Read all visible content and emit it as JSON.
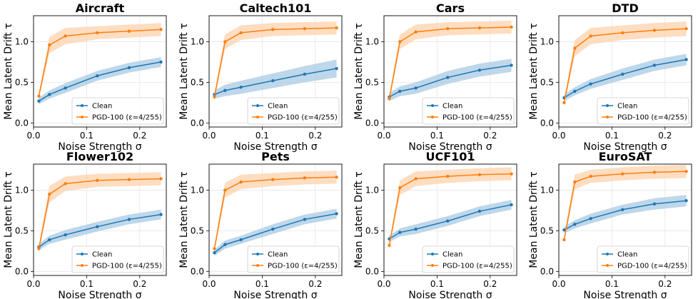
{
  "figure": {
    "xlabel": "Noise Strength σ",
    "ylabel": "Mean Latent Drift τ"
  },
  "colors": {
    "clean": "#1f77b4",
    "clean_band": "#a8c9e3",
    "pgd": "#ff7f0e",
    "pgd_band": "#fdd2ac",
    "grid": "#e6e6e6"
  },
  "chart_data": [
    {
      "type": "line",
      "title": "Aircraft",
      "xlabel": "Noise Strength σ",
      "ylabel": "Mean Latent Drift τ",
      "xlim": [
        0,
        0.25
      ],
      "ylim": [
        -0.05,
        1.32
      ],
      "xticks": [
        0.0,
        0.1,
        0.2
      ],
      "yticks": [
        0.0,
        0.5,
        1.0
      ],
      "grid": true,
      "legend": "lower right",
      "x": [
        0.01,
        0.03,
        0.06,
        0.12,
        0.18,
        0.24
      ],
      "series": [
        {
          "name": "Clean",
          "values": [
            0.27,
            0.35,
            0.43,
            0.58,
            0.68,
            0.75
          ],
          "band": [
            0.04,
            0.05,
            0.06,
            0.06,
            0.06,
            0.06
          ]
        },
        {
          "name": "PGD-100 (ε=4/255)",
          "values": [
            0.33,
            0.96,
            1.07,
            1.11,
            1.13,
            1.15
          ],
          "band": [
            0.04,
            0.1,
            0.1,
            0.08,
            0.08,
            0.08
          ]
        }
      ]
    },
    {
      "type": "line",
      "title": "Caltech101",
      "xlabel": "Noise Strength σ",
      "ylabel": "Mean Latent Drift τ",
      "xlim": [
        0,
        0.25
      ],
      "ylim": [
        -0.05,
        1.32
      ],
      "xticks": [
        0.0,
        0.1,
        0.2
      ],
      "yticks": [
        0.0,
        0.5,
        1.0
      ],
      "grid": true,
      "legend": "lower right",
      "x": [
        0.01,
        0.03,
        0.06,
        0.12,
        0.18,
        0.24
      ],
      "series": [
        {
          "name": "Clean",
          "values": [
            0.35,
            0.4,
            0.44,
            0.52,
            0.6,
            0.67
          ],
          "band": [
            0.05,
            0.07,
            0.08,
            0.09,
            0.1,
            0.11
          ]
        },
        {
          "name": "PGD-100 (ε=4/255)",
          "values": [
            0.32,
            1.0,
            1.11,
            1.15,
            1.16,
            1.17
          ],
          "band": [
            0.04,
            0.09,
            0.09,
            0.08,
            0.08,
            0.08
          ]
        }
      ]
    },
    {
      "type": "line",
      "title": "Cars",
      "xlabel": "Noise Strength σ",
      "ylabel": "Mean Latent Drift τ",
      "xlim": [
        0,
        0.25
      ],
      "ylim": [
        -0.05,
        1.32
      ],
      "xticks": [
        0.0,
        0.1,
        0.2
      ],
      "yticks": [
        0.0,
        0.5,
        1.0
      ],
      "grid": true,
      "legend": "lower right",
      "x": [
        0.01,
        0.03,
        0.06,
        0.12,
        0.18,
        0.24
      ],
      "series": [
        {
          "name": "Clean",
          "values": [
            0.32,
            0.39,
            0.43,
            0.56,
            0.65,
            0.71
          ],
          "band": [
            0.05,
            0.06,
            0.07,
            0.08,
            0.08,
            0.08
          ]
        },
        {
          "name": "PGD-100 (ε=4/255)",
          "values": [
            0.3,
            1.0,
            1.12,
            1.16,
            1.17,
            1.18
          ],
          "band": [
            0.04,
            0.09,
            0.09,
            0.08,
            0.08,
            0.08
          ]
        }
      ]
    },
    {
      "type": "line",
      "title": "DTD",
      "xlabel": "Noise Strength σ",
      "ylabel": "Mean Latent Drift τ",
      "xlim": [
        0,
        0.25
      ],
      "ylim": [
        -0.05,
        1.32
      ],
      "xticks": [
        0.0,
        0.1,
        0.2
      ],
      "yticks": [
        0.0,
        0.5,
        1.0
      ],
      "grid": true,
      "legend": "lower right",
      "x": [
        0.01,
        0.03,
        0.06,
        0.12,
        0.18,
        0.24
      ],
      "series": [
        {
          "name": "Clean",
          "values": [
            0.31,
            0.39,
            0.48,
            0.6,
            0.71,
            0.78
          ],
          "band": [
            0.04,
            0.05,
            0.06,
            0.07,
            0.07,
            0.07
          ]
        },
        {
          "name": "PGD-100 (ε=4/255)",
          "values": [
            0.25,
            0.92,
            1.07,
            1.11,
            1.14,
            1.16
          ],
          "band": [
            0.04,
            0.1,
            0.1,
            0.09,
            0.09,
            0.09
          ]
        }
      ]
    },
    {
      "type": "line",
      "title": "Flower102",
      "xlabel": "Noise Strength σ",
      "ylabel": "Mean Latent Drift τ",
      "xlim": [
        0,
        0.25
      ],
      "ylim": [
        -0.05,
        1.32
      ],
      "xticks": [
        0.0,
        0.1,
        0.2
      ],
      "yticks": [
        0.0,
        0.5,
        1.0
      ],
      "grid": true,
      "legend": "lower right",
      "x": [
        0.01,
        0.03,
        0.06,
        0.12,
        0.18,
        0.24
      ],
      "series": [
        {
          "name": "Clean",
          "values": [
            0.3,
            0.39,
            0.45,
            0.55,
            0.64,
            0.7
          ],
          "band": [
            0.04,
            0.05,
            0.06,
            0.06,
            0.06,
            0.06
          ]
        },
        {
          "name": "PGD-100 (ε=4/255)",
          "values": [
            0.28,
            0.95,
            1.08,
            1.12,
            1.13,
            1.14
          ],
          "band": [
            0.04,
            0.1,
            0.09,
            0.08,
            0.08,
            0.08
          ]
        }
      ]
    },
    {
      "type": "line",
      "title": "Pets",
      "xlabel": "Noise Strength σ",
      "ylabel": "Mean Latent Drift τ",
      "xlim": [
        0,
        0.25
      ],
      "ylim": [
        -0.05,
        1.32
      ],
      "xticks": [
        0.0,
        0.1,
        0.2
      ],
      "yticks": [
        0.0,
        0.5,
        1.0
      ],
      "grid": true,
      "legend": "lower right",
      "x": [
        0.01,
        0.03,
        0.06,
        0.12,
        0.18,
        0.24
      ],
      "series": [
        {
          "name": "Clean",
          "values": [
            0.23,
            0.33,
            0.39,
            0.52,
            0.64,
            0.71
          ],
          "band": [
            0.04,
            0.05,
            0.05,
            0.06,
            0.06,
            0.06
          ]
        },
        {
          "name": "PGD-100 (ε=4/255)",
          "values": [
            0.28,
            1.0,
            1.1,
            1.13,
            1.15,
            1.16
          ],
          "band": [
            0.04,
            0.09,
            0.09,
            0.08,
            0.08,
            0.08
          ]
        }
      ]
    },
    {
      "type": "line",
      "title": "UCF101",
      "xlabel": "Noise Strength σ",
      "ylabel": "Mean Latent Drift τ",
      "xlim": [
        0,
        0.25
      ],
      "ylim": [
        -0.05,
        1.32
      ],
      "xticks": [
        0.0,
        0.1,
        0.2
      ],
      "yticks": [
        0.0,
        0.5,
        1.0
      ],
      "grid": true,
      "legend": "lower right",
      "x": [
        0.01,
        0.03,
        0.06,
        0.12,
        0.18,
        0.24
      ],
      "series": [
        {
          "name": "Clean",
          "values": [
            0.4,
            0.48,
            0.52,
            0.62,
            0.74,
            0.82
          ],
          "band": [
            0.04,
            0.05,
            0.06,
            0.06,
            0.06,
            0.06
          ]
        },
        {
          "name": "PGD-100 (ε=4/255)",
          "values": [
            0.32,
            1.03,
            1.14,
            1.17,
            1.19,
            1.2
          ],
          "band": [
            0.04,
            0.09,
            0.09,
            0.08,
            0.08,
            0.08
          ]
        }
      ]
    },
    {
      "type": "line",
      "title": "EuroSAT",
      "xlabel": "Noise Strength σ",
      "ylabel": "Mean Latent Drift τ",
      "xlim": [
        0,
        0.25
      ],
      "ylim": [
        -0.05,
        1.32
      ],
      "xticks": [
        0.0,
        0.1,
        0.2
      ],
      "yticks": [
        0.0,
        0.5,
        1.0
      ],
      "grid": true,
      "legend": "lower right",
      "x": [
        0.01,
        0.03,
        0.06,
        0.12,
        0.18,
        0.24
      ],
      "series": [
        {
          "name": "Clean",
          "values": [
            0.51,
            0.58,
            0.65,
            0.76,
            0.83,
            0.87
          ],
          "band": [
            0.04,
            0.05,
            0.06,
            0.06,
            0.07,
            0.07
          ]
        },
        {
          "name": "PGD-100 (ε=4/255)",
          "values": [
            0.39,
            1.1,
            1.17,
            1.2,
            1.22,
            1.23
          ],
          "band": [
            0.04,
            0.09,
            0.08,
            0.08,
            0.08,
            0.08
          ]
        }
      ]
    }
  ]
}
